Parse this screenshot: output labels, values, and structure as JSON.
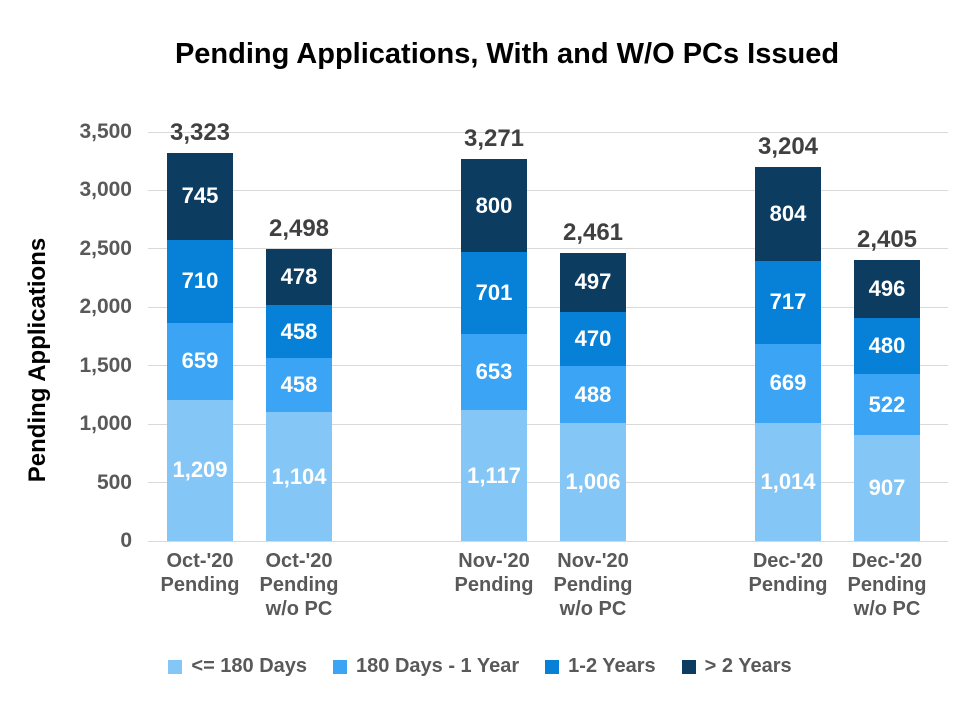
{
  "chart_data": {
    "type": "bar",
    "stacked": true,
    "title": "Pending Applications, With and W/O PCs Issued",
    "ylabel": "Pending Applications",
    "xlabel": "",
    "ylim": [
      0,
      3500
    ],
    "ytick_step": 500,
    "ytick_labels": [
      "0",
      "500",
      "1,000",
      "1,500",
      "2,000",
      "2,500",
      "3,000",
      "3,500"
    ],
    "grid": true,
    "legend_position": "bottom",
    "categories": [
      {
        "name": "Oct-'20 Pending",
        "lines": [
          "Oct-'20",
          "Pending"
        ]
      },
      {
        "name": "Oct-'20 Pending w/o PC",
        "lines": [
          "Oct-'20",
          "Pending",
          "w/o PC"
        ]
      },
      {
        "name": "Nov-'20 Pending",
        "lines": [
          "Nov-'20",
          "Pending"
        ]
      },
      {
        "name": "Nov-'20 Pending w/o PC",
        "lines": [
          "Nov-'20",
          "Pending",
          "w/o PC"
        ]
      },
      {
        "name": "Dec-'20 Pending",
        "lines": [
          "Dec-'20",
          "Pending"
        ]
      },
      {
        "name": "Dec-'20 Pending w/o PC",
        "lines": [
          "Dec-'20",
          "Pending",
          "w/o PC"
        ]
      }
    ],
    "series": [
      {
        "name": "<= 180 Days",
        "color": "#84C6F6",
        "values": [
          1209,
          1104,
          1117,
          1006,
          1014,
          907
        ],
        "labels": [
          "1,209",
          "1,104",
          "1,117",
          "1,006",
          "1,014",
          "907"
        ]
      },
      {
        "name": "180 Days - 1 Year",
        "color": "#3BA4F4",
        "values": [
          659,
          458,
          653,
          488,
          669,
          522
        ],
        "labels": [
          "659",
          "458",
          "653",
          "488",
          "669",
          "522"
        ]
      },
      {
        "name": "1-2 Years",
        "color": "#0781D7",
        "values": [
          710,
          458,
          701,
          470,
          717,
          480
        ],
        "labels": [
          "710",
          "458",
          "701",
          "470",
          "717",
          "480"
        ]
      },
      {
        "name": "> 2 Years",
        "color": "#0D3C61",
        "values": [
          745,
          478,
          800,
          497,
          804,
          496
        ],
        "labels": [
          "745",
          "478",
          "800",
          "497",
          "804",
          "496"
        ]
      }
    ],
    "totals": {
      "values": [
        3323,
        2498,
        3271,
        2461,
        3204,
        2405
      ],
      "labels": [
        "3,323",
        "2,498",
        "3,271",
        "2,461",
        "3,204",
        "2,405"
      ]
    },
    "colors": {
      "grid": "#D9D9D9",
      "tick_text": "#595959",
      "total_text": "#404040",
      "segment_text": "#FFFFFF",
      "title_text": "#000000"
    }
  }
}
